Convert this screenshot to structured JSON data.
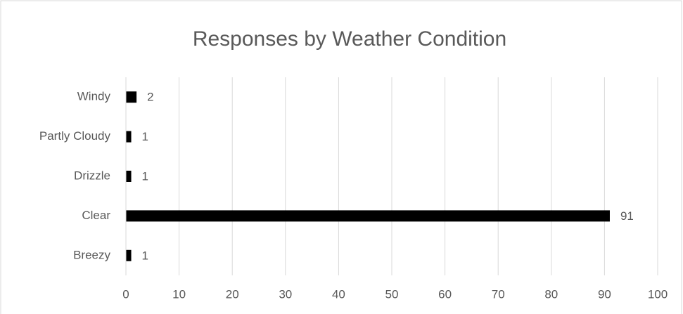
{
  "chart_data": {
    "type": "bar",
    "orientation": "horizontal",
    "title": "Responses by Weather Condition",
    "categories": [
      "Breezy",
      "Clear",
      "Drizzle",
      "Partly Cloudy",
      "Windy"
    ],
    "values": [
      1,
      91,
      1,
      1,
      2
    ],
    "color": "#000000",
    "xlim": [
      0,
      100
    ],
    "xticks": [
      0,
      10,
      20,
      30,
      40,
      50,
      60,
      70,
      80,
      90,
      100
    ],
    "grid": true,
    "data_labels": true
  }
}
